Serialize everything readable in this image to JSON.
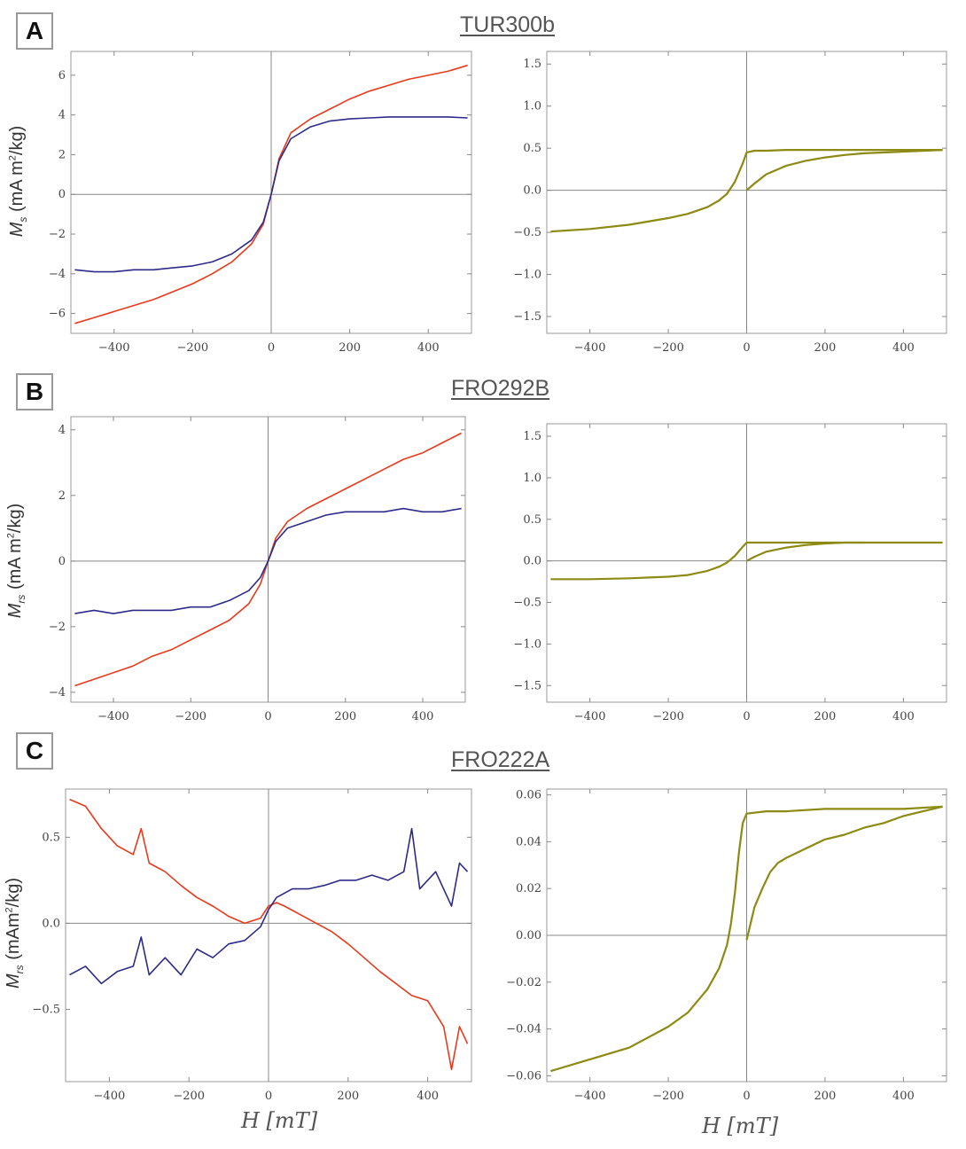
{
  "panels": [
    {
      "letter": "A",
      "title": "TUR300b",
      "ylabel_sym": "M",
      "ylabel_sub": "s",
      "ylabel_unit": "(mA m",
      "ylabel_sup": "2",
      "ylabel_tail": "/kg)"
    },
    {
      "letter": "B",
      "title": "FRO292B",
      "ylabel_sym": "M",
      "ylabel_sub": "rs",
      "ylabel_unit": "(mA m",
      "ylabel_sup": "2",
      "ylabel_tail": "/kg)"
    },
    {
      "letter": "C",
      "title": "FRO222A",
      "ylabel_sym": "M",
      "ylabel_sub": "rs",
      "ylabel_unit": "(mAm",
      "ylabel_sup": "2",
      "ylabel_tail": "/kg)"
    }
  ],
  "xlabel": "H [mT]",
  "colors": {
    "red": "#e8391a",
    "blue": "#2e2a8a",
    "olive": "#8c8a12",
    "axis": "#999999"
  },
  "chart_data": [
    {
      "id": "A-left",
      "type": "line",
      "xlabel": "",
      "ylabel": "Ms (mA m2/kg)",
      "xlim": [
        -510,
        510
      ],
      "ylim": [
        -7,
        7.2
      ],
      "xticks": [
        -400,
        -200,
        0,
        200,
        400
      ],
      "xtick_labels": [
        "−400",
        "−200",
        "0",
        "200",
        "400"
      ],
      "yticks": [
        -6,
        -4,
        -2,
        0,
        2,
        4,
        6
      ],
      "ytick_labels": [
        "−6",
        "−4",
        "−2",
        "0",
        "2",
        "4",
        "6"
      ],
      "series": [
        {
          "name": "red",
          "color": "red",
          "x": [
            -500,
            -450,
            -400,
            -350,
            -300,
            -250,
            -200,
            -150,
            -100,
            -50,
            -20,
            0,
            20,
            50,
            100,
            150,
            200,
            250,
            300,
            350,
            400,
            450,
            500
          ],
          "y": [
            -6.5,
            -6.2,
            -5.9,
            -5.6,
            -5.3,
            -4.9,
            -4.5,
            -4.0,
            -3.4,
            -2.5,
            -1.5,
            0,
            1.8,
            3.1,
            3.8,
            4.3,
            4.8,
            5.2,
            5.5,
            5.8,
            6.0,
            6.2,
            6.5
          ]
        },
        {
          "name": "blue",
          "color": "blue",
          "x": [
            -500,
            -450,
            -400,
            -350,
            -300,
            -250,
            -200,
            -150,
            -100,
            -50,
            -20,
            0,
            20,
            50,
            100,
            150,
            200,
            250,
            300,
            350,
            400,
            450,
            500
          ],
          "y": [
            -3.8,
            -3.9,
            -3.9,
            -3.8,
            -3.8,
            -3.7,
            -3.6,
            -3.4,
            -3.0,
            -2.3,
            -1.4,
            0,
            1.7,
            2.8,
            3.4,
            3.7,
            3.8,
            3.85,
            3.9,
            3.9,
            3.9,
            3.9,
            3.85
          ]
        }
      ]
    },
    {
      "id": "A-right",
      "type": "line",
      "xlabel": "",
      "ylabel": "",
      "xlim": [
        -510,
        510
      ],
      "ylim": [
        -1.7,
        1.65
      ],
      "xticks": [
        -400,
        -200,
        0,
        200,
        400
      ],
      "xtick_labels": [
        "−400",
        "−200",
        "0",
        "200",
        "400"
      ],
      "yticks": [
        -1.5,
        -1.0,
        -0.5,
        0.0,
        0.5,
        1.0,
        1.5
      ],
      "ytick_labels": [
        "−1.5",
        "−1.0",
        "−0.5",
        "0.0",
        "0.5",
        "1.0",
        "1.5"
      ],
      "series": [
        {
          "name": "upper branch",
          "color": "olive",
          "x": [
            -500,
            -400,
            -300,
            -200,
            -150,
            -100,
            -70,
            -50,
            -30,
            -10,
            0,
            20,
            50,
            100,
            200,
            300,
            400,
            500
          ],
          "y": [
            -0.49,
            -0.46,
            -0.41,
            -0.33,
            -0.28,
            -0.2,
            -0.12,
            -0.04,
            0.1,
            0.32,
            0.45,
            0.47,
            0.47,
            0.48,
            0.48,
            0.48,
            0.48,
            0.48
          ]
        },
        {
          "name": "lower branch",
          "color": "olive",
          "x": [
            0,
            20,
            50,
            100,
            150,
            200,
            250,
            300,
            400,
            500
          ],
          "y": [
            0.0,
            0.08,
            0.19,
            0.29,
            0.35,
            0.39,
            0.42,
            0.44,
            0.46,
            0.48
          ]
        }
      ]
    },
    {
      "id": "B-left",
      "type": "line",
      "xlabel": "",
      "ylabel": "Mrs (mA m2/kg)",
      "xlim": [
        -510,
        510
      ],
      "ylim": [
        -4.3,
        4.4
      ],
      "xticks": [
        -400,
        -200,
        0,
        200,
        400
      ],
      "xtick_labels": [
        "−400",
        "−200",
        "0",
        "200",
        "400"
      ],
      "yticks": [
        -4,
        -2,
        0,
        2,
        4
      ],
      "ytick_labels": [
        "−4",
        "−2",
        "0",
        "2",
        "4"
      ],
      "series": [
        {
          "name": "red",
          "color": "red",
          "x": [
            -500,
            -450,
            -400,
            -350,
            -300,
            -250,
            -200,
            -150,
            -100,
            -50,
            -20,
            0,
            20,
            50,
            100,
            150,
            200,
            250,
            300,
            350,
            400,
            450,
            500
          ],
          "y": [
            -3.8,
            -3.6,
            -3.4,
            -3.2,
            -2.9,
            -2.7,
            -2.4,
            -2.1,
            -1.8,
            -1.3,
            -0.7,
            0,
            0.7,
            1.2,
            1.6,
            1.9,
            2.2,
            2.5,
            2.8,
            3.1,
            3.3,
            3.6,
            3.9
          ]
        },
        {
          "name": "blue",
          "color": "blue",
          "x": [
            -500,
            -450,
            -400,
            -350,
            -300,
            -250,
            -200,
            -150,
            -100,
            -50,
            -20,
            0,
            20,
            50,
            100,
            150,
            200,
            250,
            300,
            350,
            400,
            450,
            500
          ],
          "y": [
            -1.6,
            -1.5,
            -1.6,
            -1.5,
            -1.5,
            -1.5,
            -1.4,
            -1.4,
            -1.2,
            -0.9,
            -0.5,
            0,
            0.6,
            1.0,
            1.2,
            1.4,
            1.5,
            1.5,
            1.5,
            1.6,
            1.5,
            1.5,
            1.6
          ]
        }
      ]
    },
    {
      "id": "B-right",
      "type": "line",
      "xlabel": "",
      "ylabel": "",
      "xlim": [
        -510,
        510
      ],
      "ylim": [
        -1.7,
        1.65
      ],
      "xticks": [
        -400,
        -200,
        0,
        200,
        400
      ],
      "xtick_labels": [
        "−400",
        "−200",
        "0",
        "200",
        "400"
      ],
      "yticks": [
        -1.5,
        -1.0,
        -0.5,
        0.0,
        0.5,
        1.0,
        1.5
      ],
      "ytick_labels": [
        "−1.5",
        "−1.0",
        "−0.5",
        "0.0",
        "0.5",
        "1.0",
        "1.5"
      ],
      "series": [
        {
          "name": "upper branch",
          "color": "olive",
          "x": [
            -500,
            -400,
            -300,
            -200,
            -150,
            -100,
            -70,
            -50,
            -30,
            -10,
            0,
            50,
            100,
            200,
            300,
            400,
            500
          ],
          "y": [
            -0.22,
            -0.22,
            -0.21,
            -0.19,
            -0.17,
            -0.12,
            -0.07,
            -0.02,
            0.06,
            0.17,
            0.22,
            0.22,
            0.22,
            0.22,
            0.22,
            0.22,
            0.22
          ]
        },
        {
          "name": "lower branch",
          "color": "olive",
          "x": [
            0,
            20,
            50,
            100,
            150,
            200,
            250,
            300
          ],
          "y": [
            0.0,
            0.05,
            0.11,
            0.16,
            0.19,
            0.21,
            0.22,
            0.22
          ]
        }
      ]
    },
    {
      "id": "C-left",
      "type": "line",
      "xlabel": "H [mT]",
      "ylabel": "Mrs (mAm2/kg)",
      "xlim": [
        -510,
        510
      ],
      "ylim": [
        -0.92,
        0.78
      ],
      "xticks": [
        -400,
        -200,
        0,
        200,
        400
      ],
      "xtick_labels": [
        "−400",
        "−200",
        "0",
        "200",
        "400"
      ],
      "yticks": [
        -0.5,
        0.0,
        0.5
      ],
      "ytick_labels": [
        "−0.5",
        "0.0",
        "0.5"
      ],
      "series": [
        {
          "name": "red",
          "color": "red",
          "x": [
            -500,
            -460,
            -420,
            -380,
            -340,
            -320,
            -300,
            -260,
            -220,
            -180,
            -140,
            -100,
            -60,
            -20,
            0,
            20,
            40,
            80,
            120,
            160,
            200,
            240,
            280,
            320,
            360,
            400,
            440,
            460,
            480,
            500
          ],
          "y": [
            0.72,
            0.68,
            0.55,
            0.45,
            0.4,
            0.55,
            0.35,
            0.3,
            0.22,
            0.15,
            0.1,
            0.04,
            0.0,
            0.03,
            0.1,
            0.12,
            0.1,
            0.05,
            0.0,
            -0.05,
            -0.12,
            -0.2,
            -0.28,
            -0.35,
            -0.42,
            -0.45,
            -0.6,
            -0.85,
            -0.6,
            -0.7
          ]
        },
        {
          "name": "blue",
          "color": "blue",
          "x": [
            -500,
            -460,
            -420,
            -380,
            -340,
            -320,
            -300,
            -260,
            -220,
            -180,
            -140,
            -100,
            -60,
            -20,
            0,
            20,
            60,
            100,
            140,
            180,
            220,
            260,
            300,
            340,
            360,
            380,
            420,
            460,
            480,
            500
          ],
          "y": [
            -0.3,
            -0.25,
            -0.35,
            -0.28,
            -0.25,
            -0.08,
            -0.3,
            -0.2,
            -0.3,
            -0.15,
            -0.2,
            -0.12,
            -0.1,
            -0.02,
            0.08,
            0.15,
            0.2,
            0.2,
            0.22,
            0.25,
            0.25,
            0.28,
            0.25,
            0.3,
            0.55,
            0.2,
            0.3,
            0.1,
            0.35,
            0.3
          ]
        }
      ]
    },
    {
      "id": "C-right",
      "type": "line",
      "xlabel": "H [mT]",
      "ylabel": "",
      "xlim": [
        -510,
        510
      ],
      "ylim": [
        -0.0625,
        0.0625
      ],
      "xticks": [
        -400,
        -200,
        0,
        200,
        400
      ],
      "xtick_labels": [
        "−400",
        "−200",
        "0",
        "200",
        "400"
      ],
      "yticks": [
        -0.06,
        -0.04,
        -0.02,
        0.0,
        0.02,
        0.04,
        0.06
      ],
      "ytick_labels": [
        "−0.06",
        "−0.04",
        "−0.02",
        "0.00",
        "0.02",
        "0.04",
        "0.06"
      ],
      "series": [
        {
          "name": "upper branch",
          "color": "olive",
          "x": [
            -500,
            -400,
            -300,
            -200,
            -150,
            -100,
            -70,
            -50,
            -40,
            -30,
            -20,
            -10,
            0,
            50,
            100,
            200,
            300,
            400,
            500
          ],
          "y": [
            -0.058,
            -0.053,
            -0.048,
            -0.039,
            -0.033,
            -0.023,
            -0.014,
            -0.004,
            0.005,
            0.018,
            0.035,
            0.048,
            0.052,
            0.053,
            0.053,
            0.054,
            0.054,
            0.054,
            0.055
          ]
        },
        {
          "name": "lower branch",
          "color": "olive",
          "x": [
            0,
            10,
            20,
            40,
            60,
            80,
            100,
            150,
            200,
            250,
            300,
            350,
            400,
            450,
            500
          ],
          "y": [
            -0.002,
            0.005,
            0.012,
            0.02,
            0.027,
            0.031,
            0.033,
            0.037,
            0.041,
            0.043,
            0.046,
            0.048,
            0.051,
            0.053,
            0.055
          ]
        }
      ]
    }
  ]
}
